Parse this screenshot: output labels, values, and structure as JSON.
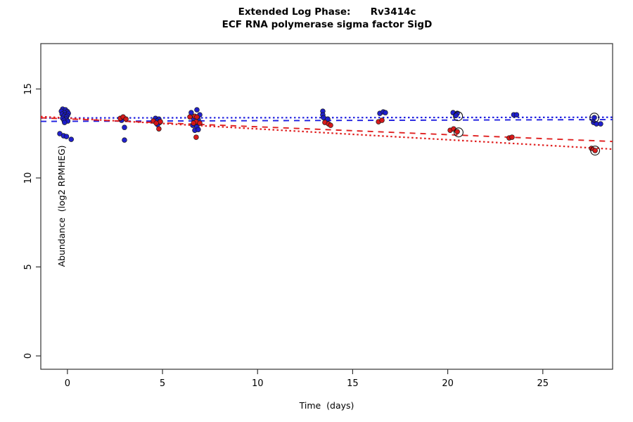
{
  "title": {
    "line1": "Extended Log Phase:      Rv3414c",
    "line2": "ECF RNA polymerase sigma factor SigD"
  },
  "chart_data": {
    "type": "scatter",
    "xlabel": "Time  (days)",
    "ylabel": "Abundance  (log2 RPMHEG)",
    "xlim": [
      -1.4,
      28.67
    ],
    "ylim": [
      -0.75,
      17.55
    ],
    "x_ticks": [
      0,
      5,
      10,
      15,
      20,
      25
    ],
    "y_ticks": [
      0,
      5,
      10,
      15
    ],
    "grid": false,
    "legend": "none",
    "point_border_color": "#1a1a1a",
    "flag_marker_color": "#111111",
    "series": [
      {
        "name": "blue",
        "color": "#1a1acc",
        "points": [
          [
            -0.25,
            13.87
          ],
          [
            -0.1,
            13.83
          ],
          [
            -0.32,
            13.75
          ],
          [
            0.0,
            13.73
          ],
          [
            -0.15,
            13.67
          ],
          [
            0.05,
            13.63
          ],
          [
            -0.28,
            13.59
          ],
          [
            -0.12,
            13.55
          ],
          [
            0.0,
            13.51
          ],
          [
            -0.2,
            13.47
          ],
          [
            -0.05,
            13.43
          ],
          [
            -0.25,
            13.35
          ],
          [
            -0.07,
            13.31
          ],
          [
            -0.18,
            13.24
          ],
          [
            0.02,
            13.2
          ],
          [
            -0.15,
            13.12
          ],
          [
            -0.4,
            12.49
          ],
          [
            -0.2,
            12.37
          ],
          [
            -0.05,
            12.33
          ],
          [
            0.2,
            12.17
          ],
          [
            2.85,
            13.24
          ],
          [
            3.0,
            12.84
          ],
          [
            3.0,
            12.13
          ],
          [
            4.63,
            13.35
          ],
          [
            4.81,
            13.31
          ],
          [
            4.7,
            13.2
          ],
          [
            4.85,
            13.12
          ],
          [
            4.74,
            13.0
          ],
          [
            6.51,
            13.67
          ],
          [
            6.81,
            13.83
          ],
          [
            6.96,
            13.55
          ],
          [
            6.63,
            13.35
          ],
          [
            6.88,
            13.28
          ],
          [
            6.59,
            12.96
          ],
          [
            6.81,
            12.88
          ],
          [
            6.7,
            12.68
          ],
          [
            6.88,
            12.72
          ],
          [
            13.43,
            13.75
          ],
          [
            13.43,
            13.55
          ],
          [
            13.47,
            13.39
          ],
          [
            13.69,
            13.31
          ],
          [
            16.43,
            13.63
          ],
          [
            16.61,
            13.71
          ],
          [
            16.72,
            13.67
          ],
          [
            20.28,
            13.67
          ],
          [
            20.5,
            13.63
          ],
          [
            20.43,
            13.51
          ],
          [
            23.47,
            13.55
          ],
          [
            23.62,
            13.55
          ],
          [
            27.71,
            13.39
          ],
          [
            27.67,
            13.12
          ],
          [
            27.82,
            13.04
          ],
          [
            28.04,
            13.04
          ]
        ]
      },
      {
        "name": "red",
        "color": "#d81414",
        "points": [
          [
            2.78,
            13.35
          ],
          [
            2.93,
            13.43
          ],
          [
            3.08,
            13.31
          ],
          [
            4.52,
            13.2
          ],
          [
            4.89,
            13.16
          ],
          [
            4.67,
            13.08
          ],
          [
            4.81,
            12.76
          ],
          [
            6.44,
            13.43
          ],
          [
            6.7,
            13.47
          ],
          [
            6.81,
            13.43
          ],
          [
            6.77,
            13.16
          ],
          [
            6.63,
            13.08
          ],
          [
            6.96,
            13.08
          ],
          [
            6.77,
            12.29
          ],
          [
            13.54,
            13.12
          ],
          [
            13.73,
            13.04
          ],
          [
            13.84,
            12.96
          ],
          [
            16.36,
            13.16
          ],
          [
            16.54,
            13.24
          ],
          [
            20.13,
            12.68
          ],
          [
            20.31,
            12.76
          ],
          [
            20.5,
            12.6
          ],
          [
            23.23,
            12.25
          ],
          [
            23.38,
            12.29
          ],
          [
            27.56,
            11.66
          ],
          [
            27.75,
            11.54
          ]
        ]
      }
    ],
    "flagged_points": [
      [
        20.54,
        13.47
      ],
      [
        20.57,
        12.56
      ],
      [
        27.71,
        13.39
      ],
      [
        27.75,
        11.54
      ]
    ],
    "trend_lines": [
      {
        "name": "blue-dotted",
        "color": "#2020e0",
        "style": "dotted",
        "start": [
          -1.4,
          13.37
        ],
        "end": [
          28.67,
          13.41
        ]
      },
      {
        "name": "blue-dashed",
        "color": "#2020e0",
        "style": "dashed",
        "start": [
          -1.4,
          13.18
        ],
        "end": [
          28.67,
          13.28
        ]
      },
      {
        "name": "red-dashed",
        "color": "#e02020",
        "style": "dashed",
        "start": [
          -1.4,
          13.38
        ],
        "end": [
          28.67,
          12.05
        ]
      },
      {
        "name": "red-dotted",
        "color": "#e02020",
        "style": "dotted",
        "start": [
          -1.4,
          13.45
        ],
        "end": [
          28.67,
          11.62
        ]
      }
    ]
  }
}
